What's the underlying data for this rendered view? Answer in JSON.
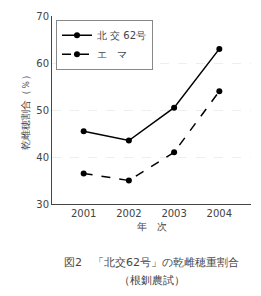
{
  "chart_data": {
    "type": "line",
    "x": [
      2001,
      2002,
      2003,
      2004
    ],
    "series": [
      {
        "name": "北 交 62号",
        "color": "#000000",
        "line_style": "solid",
        "marker": "circle",
        "values": [
          45.5,
          43.5,
          50.5,
          63.0
        ]
      },
      {
        "name": "エ　マ",
        "color": "#000000",
        "line_style": "dashed",
        "marker": "circle",
        "values": [
          36.5,
          35.0,
          41.0,
          54.0
        ]
      }
    ],
    "xlabel": "年　次",
    "ylabel": "乾雌穂割合（％）",
    "xlim": [
      2000.3,
      2004.7
    ],
    "xticks": [
      2001,
      2002,
      2003,
      2004
    ],
    "ylim": [
      30,
      70
    ],
    "yticks": [
      30,
      40,
      50,
      60,
      70
    ],
    "grid": true,
    "legend": "upper left",
    "annotations": [
      "図2　「北交62号」の乾雌穂重割合",
      "（根釧農試）"
    ]
  }
}
